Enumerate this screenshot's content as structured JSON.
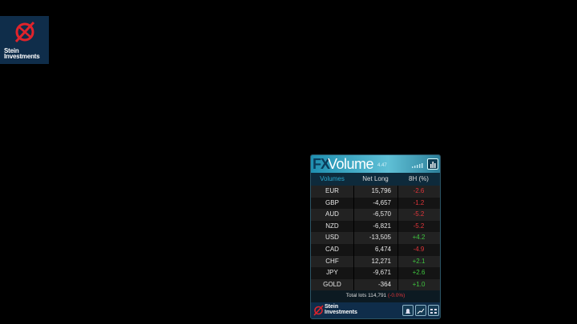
{
  "logo": {
    "line1": "Stein",
    "line2": "Investments"
  },
  "panel": {
    "title_fx": "FX",
    "title_volume": "Volume",
    "version": "4.47",
    "columns": [
      "Volumes",
      "Net Long",
      "8H (%)"
    ],
    "rows": [
      [
        "EUR",
        "15,796",
        "-2.6"
      ],
      [
        "GBP",
        "-4,657",
        "-1.2"
      ],
      [
        "AUD",
        "-6,570",
        "-5.2"
      ],
      [
        "NZD",
        "-6,821",
        "-5.2"
      ],
      [
        "USD",
        "-13,505",
        "+4.2"
      ],
      [
        "CAD",
        "6,474",
        "-4.9"
      ],
      [
        "CHF",
        "12,271",
        "+2.1"
      ],
      [
        "JPY",
        "-9,671",
        "+2.6"
      ],
      [
        "GOLD",
        "-364",
        "+1.0"
      ]
    ],
    "total_label": "Total lots",
    "total_value": "114,791",
    "total_change": "(-0.0%)",
    "footer_logo": {
      "line1": "Stein",
      "line2": "Investments"
    }
  }
}
